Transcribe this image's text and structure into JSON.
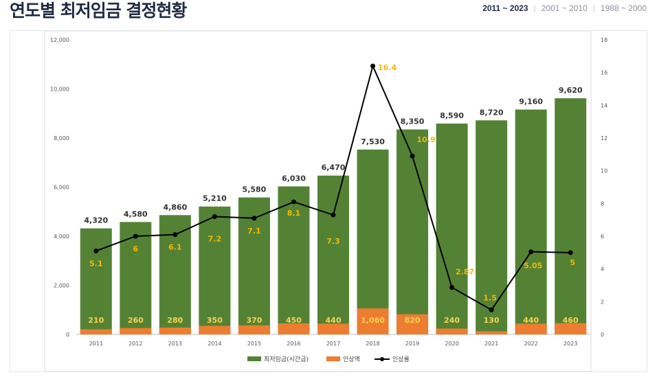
{
  "header": {
    "title": "연도별 최저임금 결정현황",
    "tabs": [
      {
        "label": "2011 ~ 2023",
        "active": true
      },
      {
        "label": "2001 ~ 2010",
        "active": false
      },
      {
        "label": "1988 ~ 2000",
        "active": false
      }
    ]
  },
  "colors": {
    "wage": "#548235",
    "increase": "#ed7d31",
    "rate": "#000000",
    "rate_label": "#f5b800"
  },
  "chart_data": {
    "type": "bar",
    "stacked": "overlay",
    "categories": [
      "2011",
      "2012",
      "2013",
      "2014",
      "2015",
      "2016",
      "2017",
      "2018",
      "2019",
      "2020",
      "2021",
      "2022",
      "2023"
    ],
    "series": [
      {
        "name": "최저임금(시간급)",
        "type": "bar",
        "axis": "left",
        "values": [
          4320,
          4580,
          4860,
          5210,
          5580,
          6030,
          6470,
          7530,
          8350,
          8590,
          8720,
          9160,
          9620
        ]
      },
      {
        "name": "인상액",
        "type": "bar",
        "axis": "left",
        "values": [
          210,
          260,
          280,
          350,
          370,
          450,
          440,
          1060,
          820,
          240,
          130,
          440,
          460
        ]
      },
      {
        "name": "인상률",
        "type": "line",
        "axis": "right",
        "values": [
          5.1,
          6,
          6.1,
          7.2,
          7.1,
          8.1,
          7.3,
          16.4,
          10.9,
          2.87,
          1.5,
          5.05,
          5
        ]
      }
    ],
    "bar_labels": [
      "4,320",
      "4,580",
      "4,860",
      "5,210",
      "5,580",
      "6,030",
      "6,470",
      "7,530",
      "8,350",
      "8,590",
      "8,720",
      "9,160",
      "9,620"
    ],
    "increase_labels": [
      "210",
      "260",
      "280",
      "350",
      "370",
      "450",
      "440",
      "1,060",
      "820",
      "240",
      "130",
      "440",
      "460"
    ],
    "rate_labels": [
      "5.1",
      "6",
      "6.1",
      "7.2",
      "7.1",
      "8.1",
      "7.3",
      "16.4",
      "10.9",
      "2.87",
      "1.5",
      "5.05",
      "5"
    ],
    "ylim_left": [
      0,
      12000
    ],
    "ylim_right": [
      0,
      18
    ],
    "yticks_left": [
      "0",
      "2,000",
      "4,000",
      "6,000",
      "8,000",
      "10,000",
      "12,000"
    ],
    "yticks_right": [
      "0",
      "2",
      "4",
      "6",
      "8",
      "10",
      "12",
      "14",
      "16",
      "18"
    ],
    "grid": false,
    "legend_position": "bottom"
  }
}
